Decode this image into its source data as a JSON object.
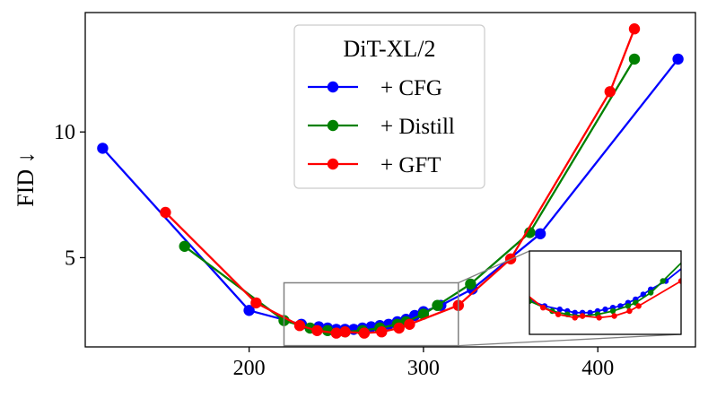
{
  "chart_data": {
    "type": "line",
    "title": "",
    "xlabel": "",
    "ylabel": "FID ↓",
    "xlim": [
      106,
      456
    ],
    "ylim": [
      1.45,
      14.75
    ],
    "xticks": [
      200,
      300,
      400
    ],
    "yticks": [
      5,
      10
    ],
    "grid": false,
    "legend": {
      "title": "DiT-XL/2",
      "position": "top-center"
    },
    "series": [
      {
        "name": "+ CFG",
        "color": "#0000ff",
        "x": [
          116,
          200,
          230,
          240,
          245,
          250,
          255,
          260,
          265,
          270,
          275,
          280,
          285,
          290,
          295,
          300,
          310,
          328,
          367,
          446
        ],
        "y": [
          9.35,
          2.9,
          2.35,
          2.25,
          2.2,
          2.15,
          2.15,
          2.15,
          2.2,
          2.25,
          2.3,
          2.35,
          2.45,
          2.55,
          2.7,
          2.85,
          3.1,
          3.75,
          5.95,
          12.9
        ]
      },
      {
        "name": "+ Distill",
        "color": "#008000",
        "x": [
          163,
          220,
          235,
          245,
          255,
          265,
          275,
          285,
          290,
          300,
          308,
          327,
          361,
          421
        ],
        "y": [
          5.45,
          2.5,
          2.2,
          2.1,
          2.05,
          2.1,
          2.2,
          2.35,
          2.45,
          2.75,
          3.1,
          3.95,
          6.0,
          12.9
        ]
      },
      {
        "name": "+ GFT",
        "color": "#ff0000",
        "x": [
          152,
          204,
          229,
          239,
          250,
          255,
          266,
          276,
          286,
          292,
          320,
          350,
          407,
          421
        ],
        "y": [
          6.8,
          3.2,
          2.3,
          2.1,
          2.0,
          2.05,
          2.0,
          2.05,
          2.2,
          2.35,
          3.1,
          4.95,
          11.6,
          14.1
        ]
      }
    ],
    "inset": {
      "xlim": [
        220,
        320
      ],
      "ylim": [
        1.5,
        4.0
      ],
      "zoom_region": {
        "x": [
          220,
          320
        ],
        "y": [
          1.5,
          4.0
        ]
      }
    }
  }
}
